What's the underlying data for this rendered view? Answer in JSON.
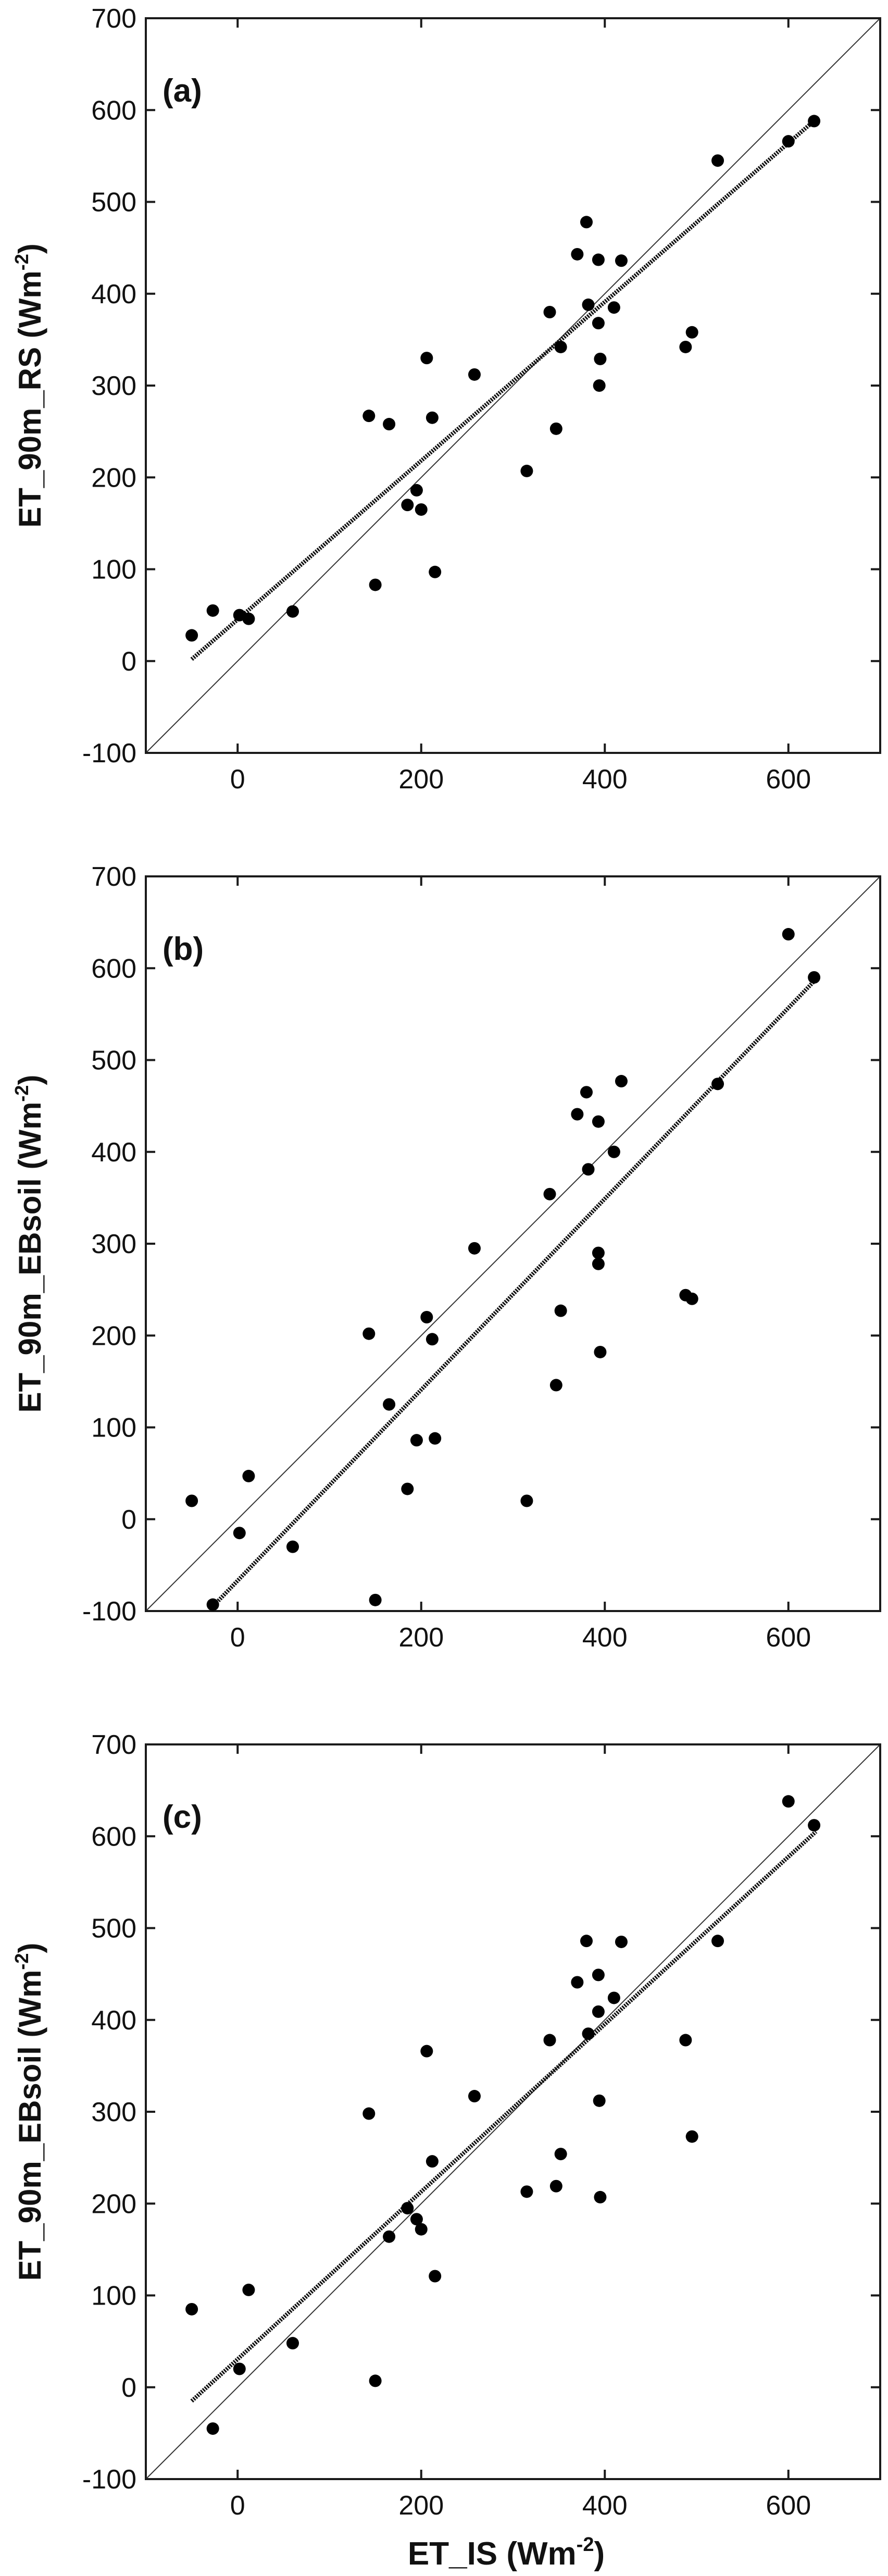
{
  "figure": {
    "xlabel_prefix": "ET_IS (Wm",
    "xlabel_sup": "-2",
    "xlabel_suffix": ")"
  },
  "chart_data": [
    {
      "type": "scatter",
      "panel_label": "(a)",
      "ylabel_prefix": "ET_90m_RS (Wm",
      "ylabel_sup": "-2",
      "ylabel_suffix": ")",
      "xlim": [
        -100,
        700
      ],
      "ylim": [
        -100,
        700
      ],
      "xticks": [
        0,
        200,
        400,
        600
      ],
      "yticks": [
        -100,
        0,
        100,
        200,
        300,
        400,
        500,
        600,
        700
      ],
      "reference_line": "1:1",
      "fit_line": {
        "x": [
          -50,
          630
        ],
        "y": [
          2,
          590
        ]
      },
      "points": [
        {
          "x": -50,
          "y": 28
        },
        {
          "x": -27,
          "y": 55
        },
        {
          "x": 2,
          "y": 50
        },
        {
          "x": 12,
          "y": 46
        },
        {
          "x": 60,
          "y": 54
        },
        {
          "x": 143,
          "y": 267
        },
        {
          "x": 150,
          "y": 83
        },
        {
          "x": 165,
          "y": 258
        },
        {
          "x": 185,
          "y": 170
        },
        {
          "x": 195,
          "y": 186
        },
        {
          "x": 200,
          "y": 165
        },
        {
          "x": 206,
          "y": 330
        },
        {
          "x": 212,
          "y": 265
        },
        {
          "x": 215,
          "y": 97
        },
        {
          "x": 258,
          "y": 312
        },
        {
          "x": 315,
          "y": 207
        },
        {
          "x": 340,
          "y": 380
        },
        {
          "x": 347,
          "y": 253
        },
        {
          "x": 352,
          "y": 342
        },
        {
          "x": 370,
          "y": 443
        },
        {
          "x": 380,
          "y": 478
        },
        {
          "x": 382,
          "y": 388
        },
        {
          "x": 393,
          "y": 437
        },
        {
          "x": 393,
          "y": 368
        },
        {
          "x": 394,
          "y": 300
        },
        {
          "x": 395,
          "y": 329
        },
        {
          "x": 410,
          "y": 385
        },
        {
          "x": 418,
          "y": 436
        },
        {
          "x": 488,
          "y": 342
        },
        {
          "x": 495,
          "y": 358
        },
        {
          "x": 523,
          "y": 545
        },
        {
          "x": 600,
          "y": 566
        },
        {
          "x": 628,
          "y": 588
        }
      ]
    },
    {
      "type": "scatter",
      "panel_label": "(b)",
      "ylabel_prefix": "ET_90m_EBsoil (Wm",
      "ylabel_sup": "-2",
      "ylabel_suffix": ")",
      "xlim": [
        -100,
        700
      ],
      "ylim": [
        -100,
        700
      ],
      "xticks": [
        0,
        200,
        400,
        600
      ],
      "yticks": [
        -100,
        0,
        100,
        200,
        300,
        400,
        500,
        600,
        700
      ],
      "reference_line": "1:1",
      "fit_line": {
        "x": [
          -27,
          630
        ],
        "y": [
          -95,
          588
        ]
      },
      "points": [
        {
          "x": -50,
          "y": 20
        },
        {
          "x": -27,
          "y": -93
        },
        {
          "x": 2,
          "y": -15
        },
        {
          "x": 12,
          "y": 47
        },
        {
          "x": 60,
          "y": -30
        },
        {
          "x": 143,
          "y": 202
        },
        {
          "x": 150,
          "y": -88
        },
        {
          "x": 165,
          "y": 125
        },
        {
          "x": 185,
          "y": 33
        },
        {
          "x": 195,
          "y": 86
        },
        {
          "x": 206,
          "y": 220
        },
        {
          "x": 212,
          "y": 196
        },
        {
          "x": 215,
          "y": 88
        },
        {
          "x": 258,
          "y": 295
        },
        {
          "x": 315,
          "y": 20
        },
        {
          "x": 340,
          "y": 354
        },
        {
          "x": 347,
          "y": 146
        },
        {
          "x": 352,
          "y": 227
        },
        {
          "x": 370,
          "y": 441
        },
        {
          "x": 380,
          "y": 465
        },
        {
          "x": 382,
          "y": 381
        },
        {
          "x": 393,
          "y": 433
        },
        {
          "x": 393,
          "y": 290
        },
        {
          "x": 393,
          "y": 278
        },
        {
          "x": 395,
          "y": 182
        },
        {
          "x": 410,
          "y": 400
        },
        {
          "x": 418,
          "y": 477
        },
        {
          "x": 488,
          "y": 244
        },
        {
          "x": 495,
          "y": 240
        },
        {
          "x": 523,
          "y": 474
        },
        {
          "x": 600,
          "y": 637
        },
        {
          "x": 628,
          "y": 590
        }
      ]
    },
    {
      "type": "scatter",
      "panel_label": "(c)",
      "ylabel_prefix": "ET_90m_EBsoil (Wm",
      "ylabel_sup": "-2",
      "ylabel_suffix": ")",
      "xlim": [
        -100,
        700
      ],
      "ylim": [
        -100,
        700
      ],
      "xticks": [
        0,
        200,
        400,
        600
      ],
      "yticks": [
        -100,
        0,
        100,
        200,
        300,
        400,
        500,
        600,
        700
      ],
      "reference_line": "1:1",
      "fit_line": {
        "x": [
          -50,
          630
        ],
        "y": [
          -15,
          605
        ]
      },
      "points": [
        {
          "x": -50,
          "y": 85
        },
        {
          "x": -27,
          "y": -45
        },
        {
          "x": 2,
          "y": 20
        },
        {
          "x": 12,
          "y": 106
        },
        {
          "x": 60,
          "y": 48
        },
        {
          "x": 143,
          "y": 298
        },
        {
          "x": 150,
          "y": 7
        },
        {
          "x": 165,
          "y": 164
        },
        {
          "x": 185,
          "y": 195
        },
        {
          "x": 195,
          "y": 183
        },
        {
          "x": 200,
          "y": 172
        },
        {
          "x": 206,
          "y": 366
        },
        {
          "x": 212,
          "y": 246
        },
        {
          "x": 215,
          "y": 121
        },
        {
          "x": 258,
          "y": 317
        },
        {
          "x": 315,
          "y": 213
        },
        {
          "x": 340,
          "y": 378
        },
        {
          "x": 347,
          "y": 219
        },
        {
          "x": 352,
          "y": 254
        },
        {
          "x": 370,
          "y": 441
        },
        {
          "x": 380,
          "y": 486
        },
        {
          "x": 382,
          "y": 385
        },
        {
          "x": 393,
          "y": 449
        },
        {
          "x": 393,
          "y": 409
        },
        {
          "x": 394,
          "y": 312
        },
        {
          "x": 395,
          "y": 207
        },
        {
          "x": 410,
          "y": 424
        },
        {
          "x": 418,
          "y": 485
        },
        {
          "x": 488,
          "y": 378
        },
        {
          "x": 495,
          "y": 273
        },
        {
          "x": 523,
          "y": 486
        },
        {
          "x": 600,
          "y": 638
        },
        {
          "x": 628,
          "y": 612
        }
      ]
    }
  ]
}
